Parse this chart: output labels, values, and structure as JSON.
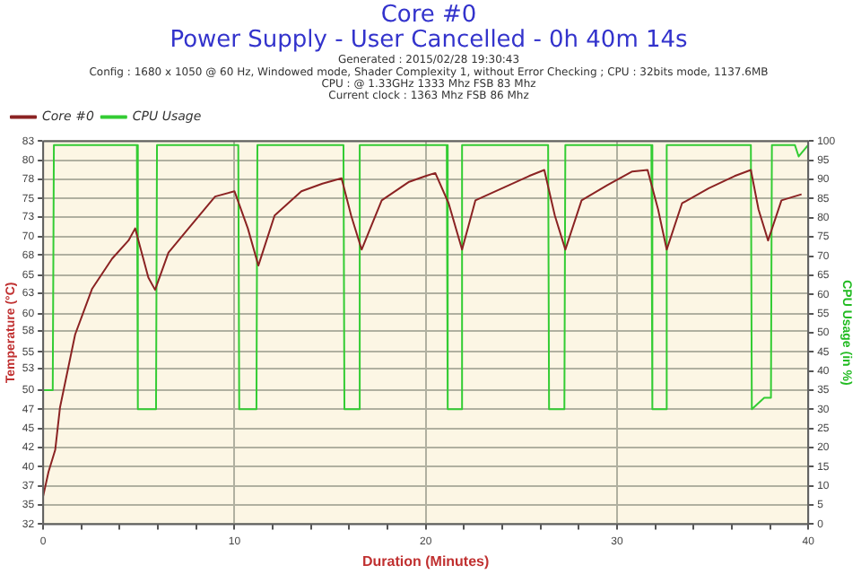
{
  "chart_data": {
    "type": "line",
    "title": "Core #0\nPower Supply - User Cancelled - 0h 40m 14s",
    "subtitle": "Generated : 2015/02/28 19:30:43\nConfig : 1680 x 1050 @ 60 Hz, Windowed mode, Shader Complexity 1, without Error Checking ; CPU : 32bits mode, 1137.6MB\nCPU : @ 1.33GHz 1333 Mhz FSB 83 Mhz\nCurrent clock : 1363 Mhz FSB 86 Mhz",
    "xlabel": "Duration (Minutes)",
    "ylabel": "Temperature (°C)",
    "y2label": "CPU Usage (in %)",
    "xlim": [
      0,
      40
    ],
    "xticks": [
      0,
      {
        "value": 2,
        "label": null
      },
      {
        "value": 4,
        "label": null
      },
      {
        "value": 6,
        "label": null
      },
      {
        "value": 8,
        "label": null
      },
      10,
      {
        "value": 12,
        "label": null
      },
      {
        "value": 14,
        "label": null
      },
      {
        "value": 16,
        "label": null
      },
      {
        "value": 18,
        "label": null
      },
      20,
      {
        "value": 22,
        "label": null
      },
      {
        "value": 24,
        "label": null
      },
      {
        "value": 26,
        "label": null
      },
      {
        "value": 28,
        "label": null
      },
      30,
      {
        "value": 32,
        "label": null
      },
      {
        "value": 34,
        "label": null
      },
      {
        "value": 36,
        "label": null
      },
      {
        "value": 38,
        "label": null
      },
      40
    ],
    "ylim": [
      32,
      82.5
    ],
    "yticks": [
      32,
      {
        "value": 34.525,
        "label": "35"
      },
      {
        "value": 37.05,
        "label": "37"
      },
      {
        "value": 39.575,
        "label": "40"
      },
      {
        "value": 42.1,
        "label": "42"
      },
      {
        "value": 44.625,
        "label": "45"
      },
      {
        "value": 47.15,
        "label": "47"
      },
      {
        "value": 49.675,
        "label": "50"
      },
      {
        "value": 52.5,
        "label": "53"
      },
      {
        "value": 54.725,
        "label": "55"
      },
      {
        "value": 57.5,
        "label": "58"
      },
      {
        "value": 59.775,
        "label": "60"
      },
      {
        "value": 62.5,
        "label": "63"
      },
      {
        "value": 64.825,
        "label": "65"
      },
      {
        "value": 67.5,
        "label": "68"
      },
      {
        "value": 69.875,
        "label": "70"
      },
      {
        "value": 72.5,
        "label": "73"
      },
      {
        "value": 74.925,
        "label": "75"
      },
      {
        "value": 77.5,
        "label": "78"
      },
      {
        "value": 79.975,
        "label": "80"
      },
      {
        "value": 82.5,
        "label": "83"
      }
    ],
    "y2lim": [
      0,
      100
    ],
    "y2ticks": [
      0,
      5,
      10,
      15,
      20,
      25,
      30,
      35,
      40,
      45,
      50,
      55,
      60,
      65,
      70,
      75,
      80,
      85,
      90,
      95,
      100
    ],
    "grid": true,
    "legend": "top left",
    "marker": "none",
    "line_style": "solid",
    "series": [
      {
        "name": "Core #0",
        "color": "#8b2323",
        "x": [
          0,
          0.28,
          0.63,
          0.88,
          1.67,
          2.55,
          3.6,
          4.46,
          4.81,
          5.5,
          5.85,
          6.55,
          7.6,
          8.99,
          10.0,
          10.7,
          11.25,
          12.1,
          13.5,
          14.6,
          15.6,
          16.1,
          16.65,
          17.7,
          19.1,
          20.0,
          20.5,
          21.2,
          21.9,
          22.6,
          24.0,
          25.4,
          26.2,
          26.75,
          27.3,
          28.15,
          29.5,
          30.8,
          31.6,
          32.15,
          32.6,
          33.4,
          34.8,
          36.15,
          37.0,
          37.4,
          37.9,
          38.6,
          39.65
        ],
        "values": [
          35.7,
          38.9,
          41.8,
          47.4,
          57,
          63,
          67,
          69.4,
          71,
          64.5,
          62.9,
          67.8,
          71,
          75.2,
          75.9,
          71,
          66.1,
          72.7,
          75.9,
          76.9,
          77.6,
          72.7,
          68.2,
          74.7,
          77.1,
          77.9,
          78.3,
          74.3,
          68.2,
          74.7,
          76.3,
          77.9,
          78.7,
          72.7,
          68.2,
          74.7,
          76.7,
          78.5,
          78.7,
          73.5,
          68.2,
          74.3,
          76.3,
          77.9,
          78.7,
          73.5,
          69.4,
          74.7,
          75.5
        ]
      },
      {
        "name": "CPU Usage",
        "color": "#33cc33",
        "axis": "y2",
        "x": [
          0,
          0.5,
          0.56,
          4.9,
          4.95,
          5.9,
          5.95,
          10.2,
          10.25,
          11.15,
          11.2,
          15.7,
          15.75,
          16.5,
          16.55,
          21.1,
          21.15,
          21.85,
          21.9,
          26.4,
          26.45,
          27.25,
          27.3,
          31.8,
          31.85,
          32.55,
          32.6,
          37.0,
          37.05,
          37.7,
          38.05,
          38.1,
          39.3,
          39.5,
          40
        ],
        "values": [
          35,
          35,
          99,
          99,
          30,
          30,
          99,
          99,
          30,
          30,
          99,
          99,
          30,
          30,
          99,
          99,
          30,
          30,
          99,
          99,
          30,
          30,
          99,
          99,
          30,
          30,
          99,
          99,
          30,
          33,
          33,
          99,
          99,
          96,
          99
        ]
      }
    ]
  }
}
